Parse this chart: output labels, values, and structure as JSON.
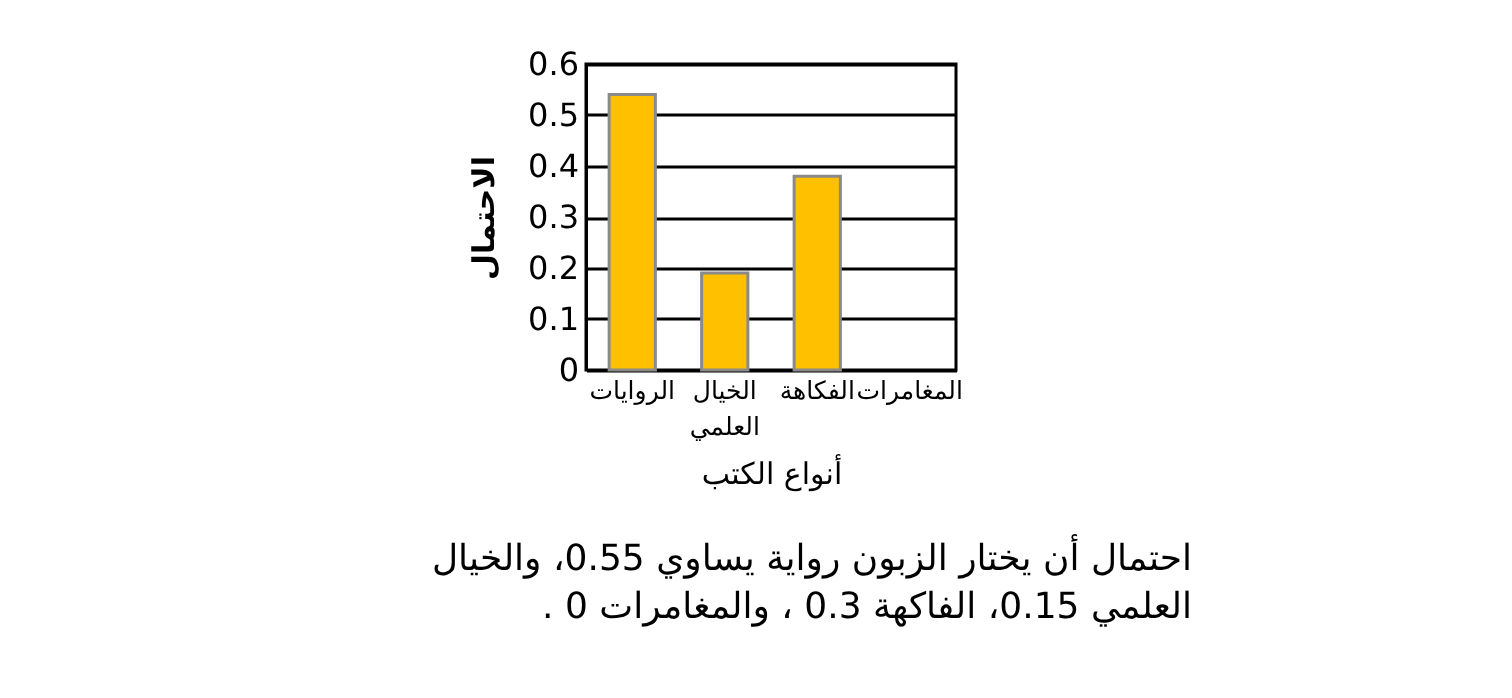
{
  "chart_data": {
    "type": "bar",
    "xlabel": "أنواع الكتب",
    "ylabel": "الاحتمال",
    "categories": [
      "الروايات",
      "الخيال العلمي",
      "الفكاهة",
      "المغامرات"
    ],
    "values": [
      0.54,
      0.19,
      0.38,
      0
    ],
    "color": "#ffc000",
    "ylim": [
      0,
      0.6
    ],
    "yticks": [
      0,
      0.1,
      0.2,
      0.3,
      0.4,
      0.5,
      0.6
    ],
    "grid": "y",
    "annotations": [
      "احتمال أن يختار الزبون رواية يساوي 0.55، والخيال العلمي 0.15، الفاكهة 0.3 ، والمغامرات 0 ."
    ]
  }
}
